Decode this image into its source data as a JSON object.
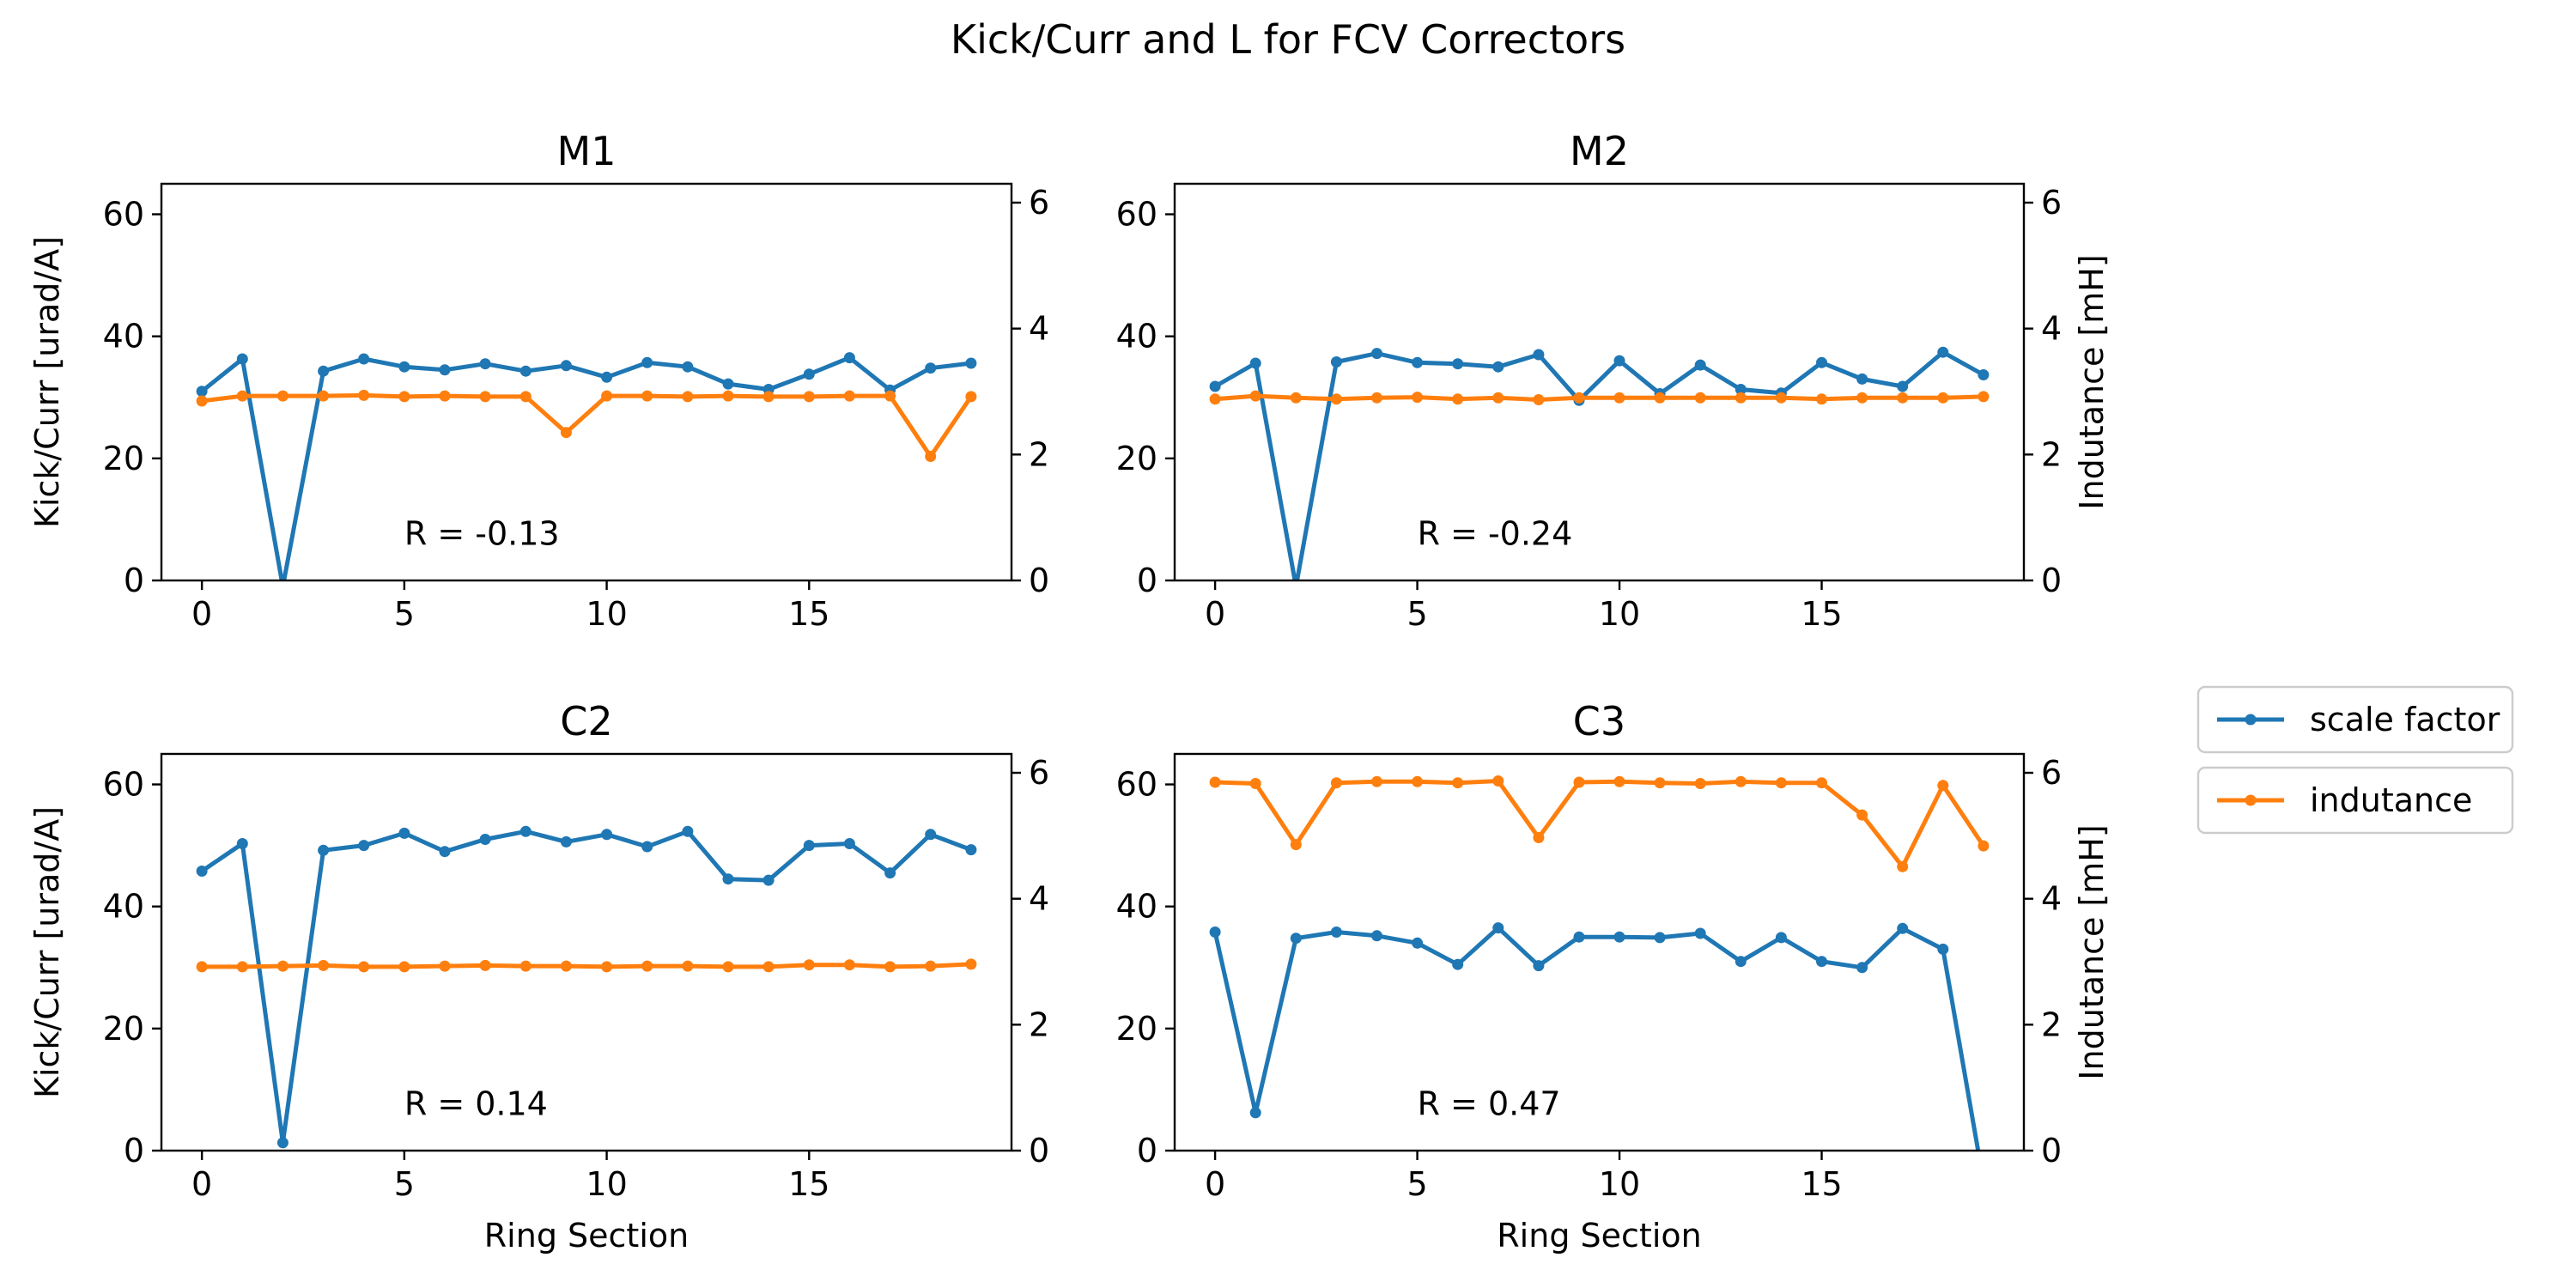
{
  "figure": {
    "suptitle": "Kick/Curr and L for FCV Correctors"
  },
  "legend": [
    {
      "name": "scale factor",
      "color": "#1f77b4"
    },
    {
      "name": "indutance",
      "color": "#ff7f0e"
    }
  ],
  "chart_data": [
    {
      "type": "line",
      "title": "M1",
      "xlabel": "",
      "ylabel": "Kick/Curr [urad/A]",
      "ylabel_right": "",
      "xlim": [
        -1,
        20
      ],
      "ylim": [
        0,
        65
      ],
      "ylim_right": [
        0,
        6.3
      ],
      "xticks": [
        0,
        5,
        10,
        15
      ],
      "yticks": [
        0,
        20,
        40,
        60
      ],
      "yticks_right": [
        0,
        2,
        4,
        6
      ],
      "annotation": {
        "text": "R = -0.13",
        "x": 5,
        "y": 5
      },
      "x": [
        0,
        1,
        2,
        3,
        4,
        5,
        6,
        7,
        8,
        9,
        10,
        11,
        12,
        13,
        14,
        15,
        16,
        17,
        18,
        19
      ],
      "series": [
        {
          "name": "scale factor",
          "axis": "left",
          "color": "#1f77b4",
          "values": [
            31,
            36.3,
            -1,
            34.3,
            36.3,
            35,
            34.5,
            35.5,
            34.3,
            35.2,
            33.3,
            35.7,
            35,
            32.2,
            31.3,
            33.8,
            36.5,
            31.2,
            34.8,
            35.6
          ]
        },
        {
          "name": "indutance",
          "axis": "right",
          "color": "#ff7f0e",
          "values": [
            2.85,
            2.93,
            2.93,
            2.93,
            2.94,
            2.92,
            2.93,
            2.92,
            2.92,
            2.35,
            2.93,
            2.93,
            2.92,
            2.93,
            2.92,
            2.92,
            2.93,
            2.93,
            1.97,
            2.92
          ]
        }
      ]
    },
    {
      "type": "line",
      "title": "M2",
      "xlabel": "",
      "ylabel": "",
      "ylabel_right": "Indutance [mH]",
      "xlim": [
        -1,
        20
      ],
      "ylim": [
        0,
        65
      ],
      "ylim_right": [
        0,
        6.3
      ],
      "xticks": [
        0,
        5,
        10,
        15
      ],
      "yticks": [
        0,
        20,
        40,
        60
      ],
      "yticks_right": [
        0,
        2,
        4,
        6
      ],
      "annotation": {
        "text": "R = -0.24",
        "x": 5,
        "y": 5
      },
      "x": [
        0,
        1,
        2,
        3,
        4,
        5,
        6,
        7,
        8,
        9,
        10,
        11,
        12,
        13,
        14,
        15,
        16,
        17,
        18,
        19
      ],
      "series": [
        {
          "name": "scale factor",
          "axis": "left",
          "color": "#1f77b4",
          "values": [
            31.8,
            35.6,
            -1,
            35.8,
            37.2,
            35.7,
            35.5,
            35,
            37,
            29.5,
            36,
            30.6,
            35.3,
            31.3,
            30.7,
            35.7,
            33,
            31.8,
            37.4,
            33.7
          ]
        },
        {
          "name": "indutance",
          "axis": "right",
          "color": "#ff7f0e",
          "values": [
            2.88,
            2.93,
            2.9,
            2.88,
            2.9,
            2.91,
            2.88,
            2.9,
            2.87,
            2.9,
            2.9,
            2.9,
            2.9,
            2.9,
            2.9,
            2.88,
            2.9,
            2.9,
            2.9,
            2.92
          ]
        }
      ]
    },
    {
      "type": "line",
      "title": "C2",
      "xlabel": "Ring Section",
      "ylabel": "Kick/Curr [urad/A]",
      "ylabel_right": "",
      "xlim": [
        -1,
        20
      ],
      "ylim": [
        0,
        65
      ],
      "ylim_right": [
        0,
        6.3
      ],
      "xticks": [
        0,
        5,
        10,
        15
      ],
      "yticks": [
        0,
        20,
        40,
        60
      ],
      "yticks_right": [
        0,
        2,
        4,
        6
      ],
      "annotation": {
        "text": "R = 0.14",
        "x": 5,
        "y": 5
      },
      "x": [
        0,
        1,
        2,
        3,
        4,
        5,
        6,
        7,
        8,
        9,
        10,
        11,
        12,
        13,
        14,
        15,
        16,
        17,
        18,
        19
      ],
      "series": [
        {
          "name": "scale factor",
          "axis": "left",
          "color": "#1f77b4",
          "values": [
            45.8,
            50.3,
            1.3,
            49.2,
            50,
            52,
            49,
            51,
            52.3,
            50.6,
            51.8,
            49.8,
            52.3,
            44.5,
            44.3,
            50,
            50.3,
            45.5,
            51.8,
            49.3
          ]
        },
        {
          "name": "indutance",
          "axis": "right",
          "color": "#ff7f0e",
          "values": [
            2.92,
            2.92,
            2.93,
            2.94,
            2.92,
            2.92,
            2.93,
            2.94,
            2.93,
            2.93,
            2.92,
            2.93,
            2.93,
            2.92,
            2.92,
            2.95,
            2.95,
            2.92,
            2.93,
            2.96
          ]
        }
      ]
    },
    {
      "type": "line",
      "title": "C3",
      "xlabel": "Ring Section",
      "ylabel": "",
      "ylabel_right": "Indutance [mH]",
      "xlim": [
        -1,
        20
      ],
      "ylim": [
        0,
        65
      ],
      "ylim_right": [
        0,
        6.3
      ],
      "xticks": [
        0,
        5,
        10,
        15
      ],
      "yticks": [
        0,
        20,
        40,
        60
      ],
      "yticks_right": [
        0,
        2,
        4,
        6
      ],
      "annotation": {
        "text": "R = 0.47",
        "x": 5,
        "y": 5
      },
      "x": [
        0,
        1,
        2,
        3,
        4,
        5,
        6,
        7,
        8,
        9,
        10,
        11,
        12,
        13,
        14,
        15,
        16,
        17,
        18,
        19
      ],
      "series": [
        {
          "name": "scale factor",
          "axis": "left",
          "color": "#1f77b4",
          "values": [
            35.8,
            6.2,
            34.8,
            35.8,
            35.2,
            34,
            30.5,
            36.5,
            30.3,
            35,
            35,
            34.9,
            35.6,
            31,
            34.9,
            31,
            30,
            36.4,
            33,
            -5
          ]
        },
        {
          "name": "indutance",
          "axis": "right",
          "color": "#ff7f0e",
          "values": [
            5.85,
            5.83,
            4.86,
            5.84,
            5.86,
            5.86,
            5.84,
            5.87,
            4.97,
            5.85,
            5.86,
            5.84,
            5.83,
            5.86,
            5.84,
            5.84,
            5.33,
            4.51,
            5.8,
            4.84
          ]
        }
      ]
    }
  ]
}
